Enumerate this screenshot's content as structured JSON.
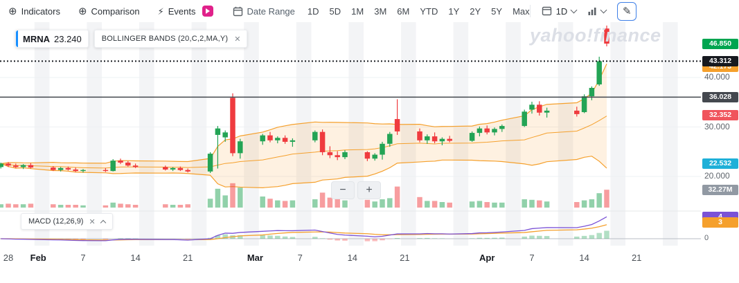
{
  "toolbar": {
    "indicators": "Indicators",
    "comparison": "Comparison",
    "events": "Events",
    "date_range": "Date Range",
    "ranges": [
      "1D",
      "5D",
      "1M",
      "3M",
      "6M",
      "YTD",
      "1Y",
      "2Y",
      "5Y",
      "Max"
    ],
    "interval": "1D",
    "events_badge_color": "#e0218a",
    "draw_tool_active_color": "#3d7fe8"
  },
  "icons": {
    "plus_circle": "⊕",
    "lightning": "⚡",
    "close": "✕",
    "pencil": "✎",
    "minus": "−",
    "plus": "+"
  },
  "legend": {
    "symbol": "MRNA",
    "value": "23.240",
    "indicator": "BOLLINGER BANDS (20,C,2,MA,Y)"
  },
  "watermark": "yahoo!finance",
  "right_axis": {
    "plain": [
      {
        "text": "40.000",
        "price": 40
      },
      {
        "text": "30.000",
        "price": 30
      },
      {
        "text": "20.000",
        "price": 20
      }
    ],
    "badges": [
      {
        "text": "46.850",
        "price": 46.85,
        "color": "#00a550",
        "name": "last-price-badge"
      },
      {
        "text": "42.173",
        "price": 42.173,
        "color": "#f5a02c",
        "name": "bollinger-upper-badge"
      },
      {
        "text": "43.312",
        "price": 43.312,
        "color": "#16191f",
        "name": "crosshair-price-badge"
      },
      {
        "text": "36.028",
        "price": 36.028,
        "color": "#44484f",
        "name": "drawn-line-badge"
      },
      {
        "text": "32.352",
        "price": 32.352,
        "color": "#f0545c",
        "name": "bollinger-middle-badge"
      },
      {
        "text": "22.532",
        "price": 22.532,
        "color": "#1fb0d8",
        "name": "bollinger-lower-badge"
      }
    ],
    "volume_badge": {
      "text": "32.27M",
      "color": "#9199a3"
    }
  },
  "macd_panel": {
    "label": "MACD (12,26,9)",
    "badges": [
      {
        "text": "4",
        "value": 4,
        "color": "#7b52d6",
        "name": "macd-value-badge"
      },
      {
        "text": "3",
        "value": 3,
        "color": "#f5a02c",
        "name": "macd-signal-badge"
      }
    ],
    "zero_label": "0"
  },
  "chart_data": {
    "type": "candlestick",
    "symbol": "MRNA",
    "interval": "1D",
    "legend_value": 23.24,
    "overlays": {
      "bollinger_bands": {
        "period": 20,
        "source": "C",
        "stddev": 2,
        "ma_shown": true
      }
    },
    "lower_panel": {
      "macd": {
        "fast": 12,
        "slow": 26,
        "signal": 9
      }
    },
    "price_axis_labels": [
      40.0,
      30.0,
      20.0
    ],
    "lines": {
      "crosshair": 43.312,
      "drawn_level": 36.028
    },
    "last_volume_label": "32.27M",
    "x_ticks": [
      {
        "label": "28",
        "day": 0
      },
      {
        "label": "Feb",
        "day": 4
      },
      {
        "label": "7",
        "day": 10
      },
      {
        "label": "14",
        "day": 17
      },
      {
        "label": "21",
        "day": 24
      },
      {
        "label": "Mar",
        "day": 33
      },
      {
        "label": "7",
        "day": 39
      },
      {
        "label": "14",
        "day": 46
      },
      {
        "label": "21",
        "day": 53
      },
      {
        "label": "Apr",
        "day": 64
      },
      {
        "label": "7",
        "day": 70
      },
      {
        "label": "14",
        "day": 77
      },
      {
        "label": "21",
        "day": 84
      }
    ],
    "candles": [
      {
        "date": "Jan 27",
        "day": -1,
        "o": 21.9,
        "h": 22.8,
        "l": 21.6,
        "c": 22.6,
        "v": 6
      },
      {
        "date": "Jan 28",
        "day": 0,
        "o": 22.6,
        "h": 22.9,
        "l": 21.9,
        "c": 22.2,
        "v": 7
      },
      {
        "date": "Jan 29",
        "day": 1,
        "o": 22.2,
        "h": 22.6,
        "l": 21.7,
        "c": 21.9,
        "v": 6
      },
      {
        "date": "Jan 30",
        "day": 2,
        "o": 21.9,
        "h": 22.5,
        "l": 21.5,
        "c": 22.3,
        "v": 6
      },
      {
        "date": "Jan 31",
        "day": 3,
        "o": 22.3,
        "h": 22.7,
        "l": 21.6,
        "c": 21.8,
        "v": 7
      },
      {
        "date": "Feb 3",
        "day": 6,
        "o": 21.8,
        "h": 22.1,
        "l": 21.1,
        "c": 21.3,
        "v": 6
      },
      {
        "date": "Feb 4",
        "day": 7,
        "o": 21.3,
        "h": 21.9,
        "l": 21.0,
        "c": 21.7,
        "v": 5
      },
      {
        "date": "Feb 5",
        "day": 8,
        "o": 21.7,
        "h": 22.0,
        "l": 21.2,
        "c": 21.4,
        "v": 5
      },
      {
        "date": "Feb 6",
        "day": 9,
        "o": 21.4,
        "h": 21.8,
        "l": 20.9,
        "c": 21.1,
        "v": 5
      },
      {
        "date": "Feb 7",
        "day": 10,
        "o": 21.1,
        "h": 21.5,
        "l": 20.8,
        "c": 21.3,
        "v": 4
      },
      {
        "date": "Feb 10",
        "day": 13,
        "o": 21.3,
        "h": 21.7,
        "l": 20.9,
        "c": 21.1,
        "v": 4
      },
      {
        "date": "Feb 11",
        "day": 14,
        "o": 21.1,
        "h": 23.5,
        "l": 21.0,
        "c": 23.2,
        "v": 9
      },
      {
        "date": "Feb 12",
        "day": 15,
        "o": 23.2,
        "h": 23.6,
        "l": 22.5,
        "c": 22.8,
        "v": 7
      },
      {
        "date": "Feb 13",
        "day": 16,
        "o": 22.8,
        "h": 23.1,
        "l": 22.0,
        "c": 22.2,
        "v": 6
      },
      {
        "date": "Feb 14",
        "day": 17,
        "o": 22.2,
        "h": 22.6,
        "l": 21.7,
        "c": 21.9,
        "v": 5
      },
      {
        "date": "Feb 18",
        "day": 21,
        "o": 21.9,
        "h": 22.2,
        "l": 21.2,
        "c": 21.4,
        "v": 6
      },
      {
        "date": "Feb 19",
        "day": 22,
        "o": 21.4,
        "h": 21.9,
        "l": 21.1,
        "c": 21.7,
        "v": 5
      },
      {
        "date": "Feb 20",
        "day": 23,
        "o": 21.7,
        "h": 22.0,
        "l": 21.1,
        "c": 21.3,
        "v": 5
      },
      {
        "date": "Feb 21",
        "day": 24,
        "o": 21.3,
        "h": 21.6,
        "l": 20.8,
        "c": 21.0,
        "v": 6
      },
      {
        "date": "Feb 24",
        "day": 27,
        "o": 21.0,
        "h": 24.9,
        "l": 20.7,
        "c": 24.6,
        "v": 16
      },
      {
        "date": "Feb 25",
        "day": 28,
        "o": 28.4,
        "h": 30.2,
        "l": 21.6,
        "c": 29.7,
        "v": 34
      },
      {
        "date": "Feb 26",
        "day": 29,
        "o": 27.9,
        "h": 29.3,
        "l": 27.0,
        "c": 28.9,
        "v": 22
      },
      {
        "date": "Feb 27",
        "day": 30,
        "o": 35.9,
        "h": 36.8,
        "l": 24.1,
        "c": 24.7,
        "v": 44
      },
      {
        "date": "Feb 28",
        "day": 31,
        "o": 24.7,
        "h": 27.6,
        "l": 23.6,
        "c": 27.1,
        "v": 36
      },
      {
        "date": "Mar 2",
        "day": 34,
        "o": 27.1,
        "h": 28.6,
        "l": 26.4,
        "c": 28.3,
        "v": 20
      },
      {
        "date": "Mar 3",
        "day": 35,
        "o": 28.3,
        "h": 29.0,
        "l": 26.9,
        "c": 27.3,
        "v": 16
      },
      {
        "date": "Mar 4",
        "day": 36,
        "o": 27.3,
        "h": 28.1,
        "l": 26.7,
        "c": 27.8,
        "v": 13
      },
      {
        "date": "Mar 5",
        "day": 37,
        "o": 27.8,
        "h": 28.3,
        "l": 26.6,
        "c": 27.0,
        "v": 12
      },
      {
        "date": "Mar 6",
        "day": 38,
        "o": 27.0,
        "h": 27.7,
        "l": 26.0,
        "c": 27.3,
        "v": 13
      },
      {
        "date": "Mar 9",
        "day": 41,
        "o": 27.3,
        "h": 29.3,
        "l": 26.9,
        "c": 29.0,
        "v": 15
      },
      {
        "date": "Mar 10",
        "day": 42,
        "o": 29.0,
        "h": 29.5,
        "l": 24.3,
        "c": 24.9,
        "v": 27
      },
      {
        "date": "Mar 11",
        "day": 43,
        "o": 24.9,
        "h": 26.1,
        "l": 23.7,
        "c": 24.3,
        "v": 18
      },
      {
        "date": "Mar 12",
        "day": 44,
        "o": 24.3,
        "h": 25.1,
        "l": 23.3,
        "c": 23.9,
        "v": 16
      },
      {
        "date": "Mar 13",
        "day": 45,
        "o": 23.9,
        "h": 25.3,
        "l": 23.5,
        "c": 24.9,
        "v": 13
      },
      {
        "date": "Mar 16",
        "day": 48,
        "o": 24.9,
        "h": 25.1,
        "l": 23.1,
        "c": 23.6,
        "v": 14
      },
      {
        "date": "Mar 17",
        "day": 49,
        "o": 23.6,
        "h": 24.7,
        "l": 23.2,
        "c": 24.4,
        "v": 11
      },
      {
        "date": "Mar 18",
        "day": 50,
        "o": 24.4,
        "h": 27.0,
        "l": 23.4,
        "c": 26.6,
        "v": 15
      },
      {
        "date": "Mar 19",
        "day": 51,
        "o": 26.6,
        "h": 29.0,
        "l": 26.0,
        "c": 28.6,
        "v": 17
      },
      {
        "date": "Mar 20",
        "day": 52,
        "o": 31.6,
        "h": 35.6,
        "l": 28.4,
        "c": 29.1,
        "v": 38
      },
      {
        "date": "Mar 23",
        "day": 55,
        "o": 29.1,
        "h": 29.7,
        "l": 26.9,
        "c": 27.3,
        "v": 19
      },
      {
        "date": "Mar 24",
        "day": 56,
        "o": 27.3,
        "h": 28.5,
        "l": 26.6,
        "c": 28.1,
        "v": 12
      },
      {
        "date": "Mar 25",
        "day": 57,
        "o": 28.1,
        "h": 28.9,
        "l": 26.7,
        "c": 27.1,
        "v": 12
      },
      {
        "date": "Mar 26",
        "day": 58,
        "o": 27.1,
        "h": 27.9,
        "l": 26.3,
        "c": 27.6,
        "v": 10
      },
      {
        "date": "Mar 27",
        "day": 59,
        "o": 27.6,
        "h": 28.2,
        "l": 26.9,
        "c": 27.2,
        "v": 9
      },
      {
        "date": "Mar 30",
        "day": 62,
        "o": 27.2,
        "h": 29.1,
        "l": 27.0,
        "c": 28.8,
        "v": 11
      },
      {
        "date": "Mar 31",
        "day": 63,
        "o": 28.8,
        "h": 30.1,
        "l": 28.1,
        "c": 29.7,
        "v": 12
      },
      {
        "date": "Apr 1",
        "day": 64,
        "o": 29.7,
        "h": 30.3,
        "l": 28.5,
        "c": 28.9,
        "v": 10
      },
      {
        "date": "Apr 2",
        "day": 65,
        "o": 28.9,
        "h": 29.9,
        "l": 28.3,
        "c": 29.6,
        "v": 9
      },
      {
        "date": "Apr 3",
        "day": 66,
        "o": 29.6,
        "h": 30.5,
        "l": 29.0,
        "c": 30.2,
        "v": 9
      },
      {
        "date": "Apr 6",
        "day": 69,
        "o": 30.2,
        "h": 33.5,
        "l": 30.0,
        "c": 33.1,
        "v": 15
      },
      {
        "date": "Apr 7",
        "day": 70,
        "o": 33.5,
        "h": 35.1,
        "l": 32.7,
        "c": 34.5,
        "v": 14
      },
      {
        "date": "Apr 8",
        "day": 71,
        "o": 34.5,
        "h": 35.2,
        "l": 32.3,
        "c": 32.9,
        "v": 13
      },
      {
        "date": "Apr 9",
        "day": 72,
        "o": 32.9,
        "h": 33.9,
        "l": 31.9,
        "c": 33.3,
        "v": 11
      },
      {
        "date": "Apr 13",
        "day": 76,
        "o": 33.3,
        "h": 34.1,
        "l": 32.1,
        "c": 32.6,
        "v": 10
      },
      {
        "date": "Apr 14",
        "day": 77,
        "o": 33.0,
        "h": 36.6,
        "l": 32.8,
        "c": 36.2,
        "v": 13
      },
      {
        "date": "Apr 15",
        "day": 78,
        "o": 36.2,
        "h": 38.2,
        "l": 35.4,
        "c": 37.9,
        "v": 15
      },
      {
        "date": "Apr 16",
        "day": 79,
        "o": 38.6,
        "h": 44.2,
        "l": 38.3,
        "c": 43.3,
        "v": 26
      },
      {
        "date": "Apr 17",
        "day": 80,
        "o": 49.9,
        "h": 50.5,
        "l": 46.3,
        "c": 46.85,
        "v": 32.27
      }
    ]
  },
  "colors": {
    "candle_up": "#23a455",
    "candle_down": "#ef3b3f",
    "bollinger_line": "#f5a02c",
    "macd_line": "#7b52d6",
    "macd_signal": "#f5a02c",
    "accent_blue": "#188fff"
  }
}
